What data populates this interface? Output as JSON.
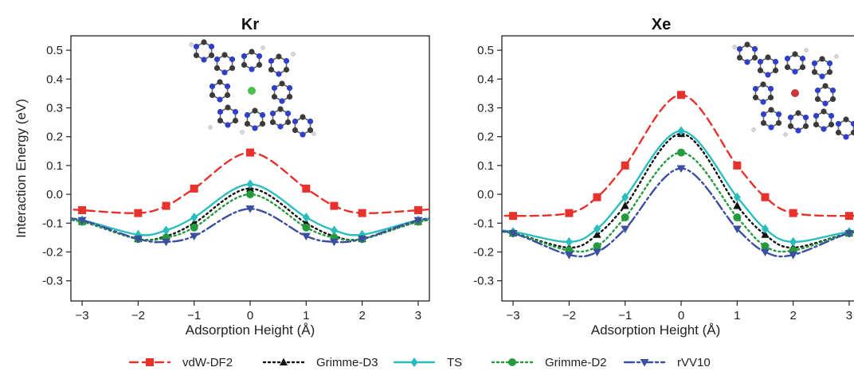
{
  "chart_data": {
    "type": "line",
    "ylabel": "Interaction Energy (eV)",
    "xlabel": "Adsorption Height (Å)",
    "xlim": [
      -3.2,
      3.2
    ],
    "ylim": [
      -0.37,
      0.55
    ],
    "xticks": [
      -3,
      -2,
      -1,
      0,
      1,
      2,
      3
    ],
    "xtick_labels": [
      "−3",
      "−2",
      "−1",
      "0",
      "1",
      "2",
      "3"
    ],
    "yticks": [
      -0.3,
      -0.2,
      -0.1,
      0.0,
      0.1,
      0.2,
      0.3,
      0.4,
      0.5
    ],
    "ytick_labels": [
      "-0.3",
      "-0.2",
      "-0.1",
      "0.0",
      "0.1",
      "0.2",
      "0.3",
      "0.4",
      "0.5"
    ],
    "legend_position": "bottom",
    "styles": {
      "vdW-DF2": {
        "color": "#e8312b",
        "dash": "10 6",
        "marker": "square"
      },
      "Grimme-D3": {
        "color": "#111111",
        "dash": "2 4",
        "marker": "triangle"
      },
      "TS": {
        "color": "#2bbdbd",
        "dash": "",
        "marker": "diamond"
      },
      "Grimme-D2": {
        "color": "#249a3c",
        "dash": "2 4",
        "marker": "circle"
      },
      "rVV10": {
        "color": "#3a4fa0",
        "dash": "12 4 3 4",
        "marker": "triangle-down"
      }
    },
    "panels": [
      {
        "title": "Kr",
        "x": [
          -3,
          -2,
          -1.5,
          -1,
          0,
          1,
          1.5,
          2,
          3
        ],
        "series": [
          {
            "name": "vdW-DF2",
            "values": [
              -0.055,
              -0.065,
              -0.04,
              0.02,
              0.145,
              0.02,
              -0.04,
              -0.065,
              -0.055
            ]
          },
          {
            "name": "Grimme-D3",
            "values": [
              -0.095,
              -0.155,
              -0.145,
              -0.1,
              0.02,
              -0.1,
              -0.145,
              -0.155,
              -0.095
            ]
          },
          {
            "name": "TS",
            "values": [
              -0.09,
              -0.14,
              -0.125,
              -0.08,
              0.035,
              -0.08,
              -0.125,
              -0.14,
              -0.09
            ]
          },
          {
            "name": "Grimme-D2",
            "values": [
              -0.095,
              -0.155,
              -0.15,
              -0.115,
              0.0,
              -0.115,
              -0.15,
              -0.155,
              -0.095
            ]
          },
          {
            "name": "rVV10",
            "values": [
              -0.09,
              -0.155,
              -0.165,
              -0.145,
              -0.05,
              -0.145,
              -0.165,
              -0.155,
              -0.09
            ]
          }
        ]
      },
      {
        "title": "Xe",
        "x": [
          -3,
          -2,
          -1.5,
          -1,
          0,
          1,
          1.5,
          2,
          3
        ],
        "series": [
          {
            "name": "vdW-DF2",
            "values": [
              -0.075,
              -0.065,
              -0.01,
              0.1,
              0.345,
              0.1,
              -0.01,
              -0.065,
              -0.075
            ]
          },
          {
            "name": "Grimme-D3",
            "values": [
              -0.135,
              -0.185,
              -0.14,
              -0.04,
              0.21,
              -0.04,
              -0.14,
              -0.185,
              -0.135
            ]
          },
          {
            "name": "TS",
            "values": [
              -0.13,
              -0.165,
              -0.12,
              -0.01,
              0.22,
              -0.01,
              -0.12,
              -0.165,
              -0.13
            ]
          },
          {
            "name": "Grimme-D2",
            "values": [
              -0.135,
              -0.195,
              -0.18,
              -0.08,
              0.145,
              -0.08,
              -0.18,
              -0.195,
              -0.135
            ]
          },
          {
            "name": "rVV10",
            "values": [
              -0.135,
              -0.21,
              -0.2,
              -0.12,
              0.09,
              -0.12,
              -0.2,
              -0.21,
              -0.135
            ]
          }
        ]
      }
    ]
  },
  "legend": {
    "items": [
      "vdW-DF2",
      "Grimme-D3",
      "TS",
      "Grimme-D2",
      "rVV10"
    ]
  },
  "inset": {
    "Kr": {
      "atom_color": "#4cc24c"
    },
    "Xe": {
      "atom_color": "#c8363a"
    }
  }
}
